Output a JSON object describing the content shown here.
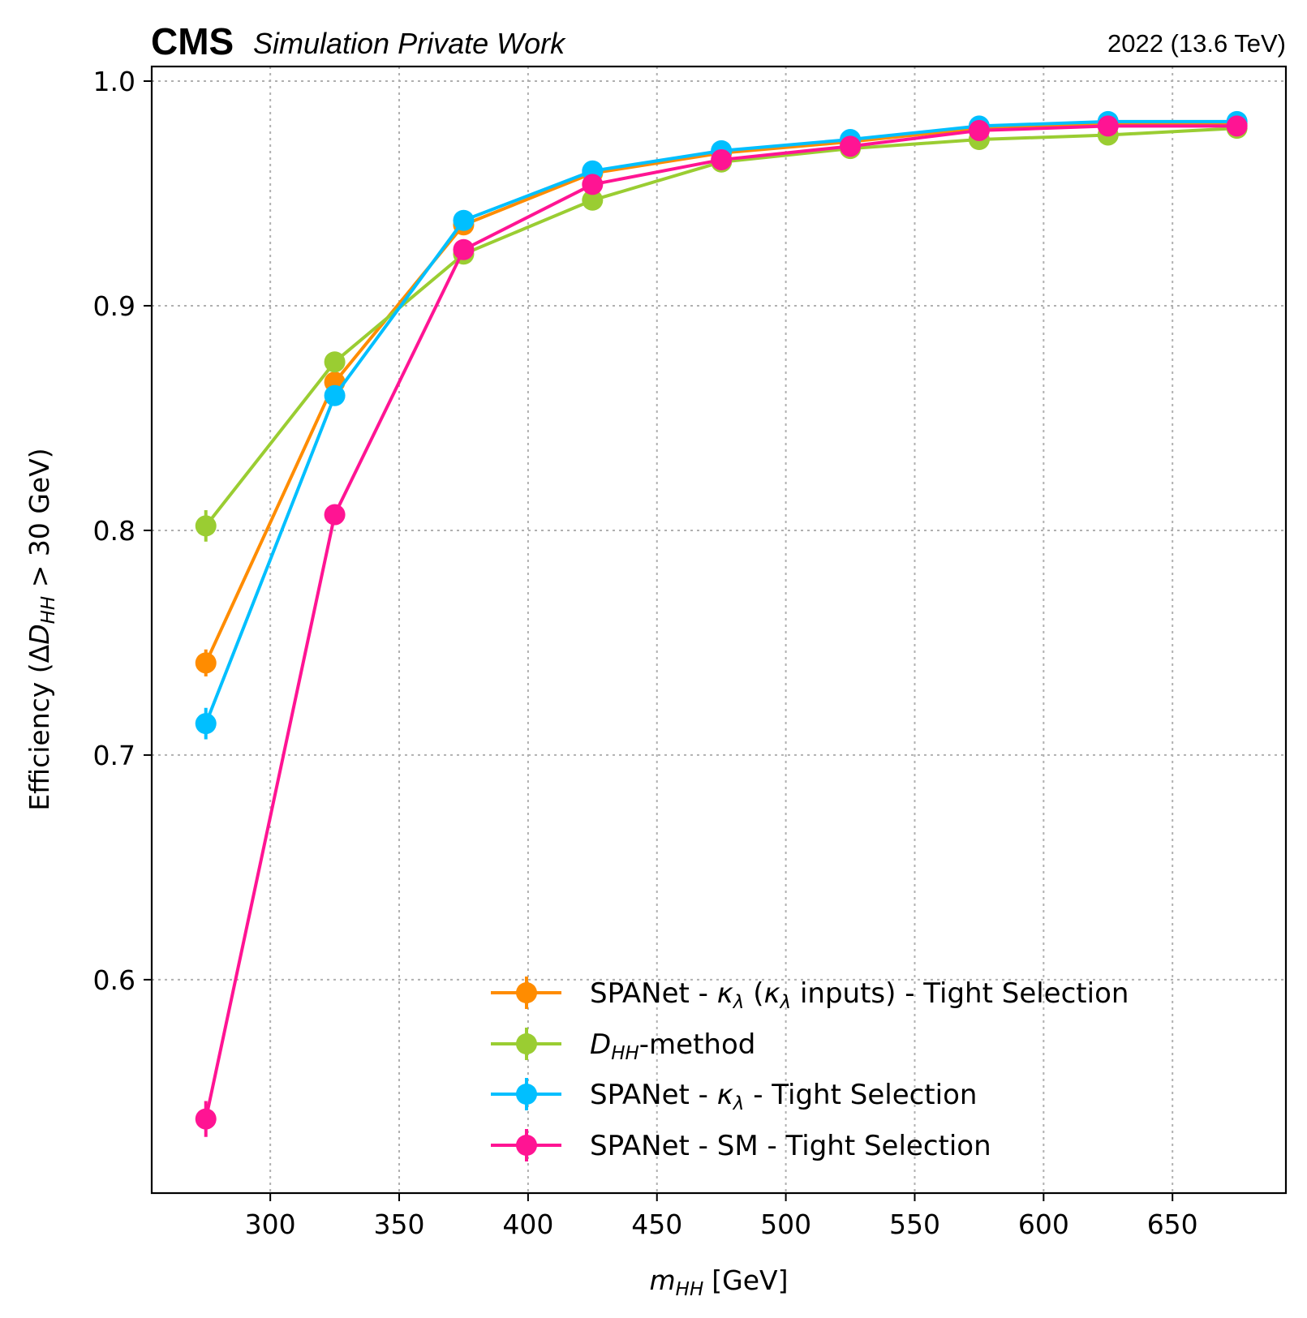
{
  "header": {
    "experiment": "CMS",
    "status": "Simulation Private Work",
    "lumi": "2022 (13.6 TeV)"
  },
  "chart_data": {
    "type": "line",
    "title": "",
    "xlabel_main": "m",
    "xlabel_sub": "HH",
    "xlabel_unit": "[GeV]",
    "ylabel_pre": "Efficiency (",
    "ylabel_delta": "Δ",
    "ylabel_D": "D",
    "ylabel_sub": "HH",
    "ylabel_post": " > 30 GeV)",
    "xlim": [
      254,
      694
    ],
    "ylim": [
      0.505,
      1.0065
    ],
    "xticks": [
      "300",
      "350",
      "400",
      "450",
      "500",
      "550",
      "600",
      "650"
    ],
    "yticks": [
      "0.6",
      "0.7",
      "0.8",
      "0.9",
      "1.0"
    ],
    "grid": true,
    "legend_position": "lower-right",
    "x": [
      275,
      325,
      375,
      425,
      475,
      525,
      575,
      625,
      675
    ],
    "series": [
      {
        "name": "SPANet - κλ (κλ inputs) - Tight Selection",
        "color": "#ff8c00",
        "values": [
          0.741,
          0.866,
          0.936,
          0.959,
          0.968,
          0.973,
          0.979,
          0.981,
          0.981
        ],
        "errors": [
          0.006,
          0.004,
          0.002,
          0.002,
          0.001,
          0.001,
          0.001,
          0.001,
          0.001
        ]
      },
      {
        "name": "DHH-method",
        "color": "#9acd32",
        "values": [
          0.802,
          0.875,
          0.923,
          0.947,
          0.964,
          0.97,
          0.974,
          0.976,
          0.979
        ],
        "errors": [
          0.007,
          0.004,
          0.002,
          0.002,
          0.001,
          0.001,
          0.001,
          0.001,
          0.001
        ]
      },
      {
        "name": "SPANet - κλ - Tight Selection",
        "color": "#00bfff",
        "values": [
          0.714,
          0.86,
          0.938,
          0.96,
          0.969,
          0.974,
          0.98,
          0.982,
          0.982
        ],
        "errors": [
          0.007,
          0.004,
          0.002,
          0.002,
          0.001,
          0.001,
          0.001,
          0.001,
          0.001
        ]
      },
      {
        "name": "SPANet - SM - Tight Selection",
        "color": "#ff1493",
        "values": [
          0.538,
          0.807,
          0.925,
          0.954,
          0.965,
          0.971,
          0.978,
          0.98,
          0.98
        ],
        "errors": [
          0.008,
          0.004,
          0.002,
          0.002,
          0.001,
          0.001,
          0.001,
          0.001,
          0.001
        ]
      }
    ]
  }
}
